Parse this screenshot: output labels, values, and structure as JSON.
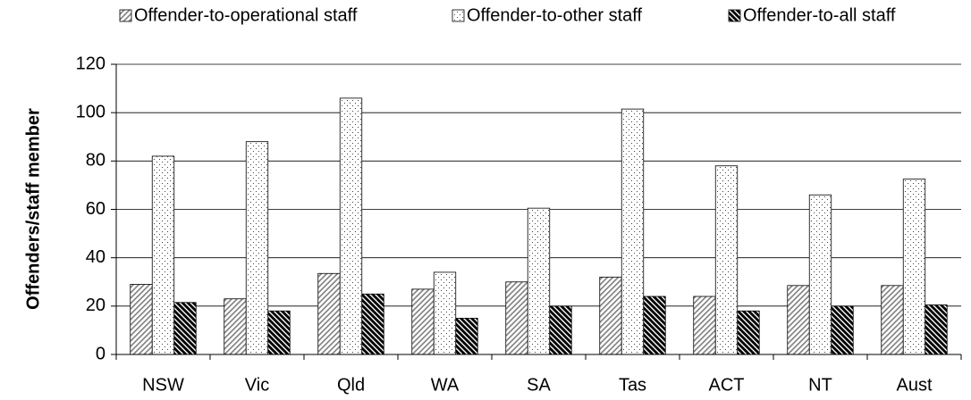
{
  "chart_data": {
    "type": "bar",
    "y_label": "Offenders/staff member",
    "categories": [
      "NSW",
      "Vic",
      "Qld",
      "WA",
      "SA",
      "Tas",
      "ACT",
      "NT",
      "Aust"
    ],
    "series": [
      {
        "name": "Offender-to-operational staff",
        "color": "#808080",
        "values": [
          29,
          23,
          33.5,
          27,
          30,
          32,
          24,
          28.5,
          28.5
        ]
      },
      {
        "name": "Offender-to-other staff",
        "color": "#404040",
        "values": [
          82,
          88,
          106,
          34,
          60.5,
          101.5,
          78,
          66,
          72.5
        ]
      },
      {
        "name": "Offender-to-all staff",
        "color": "#000000",
        "values": [
          21.5,
          18,
          25,
          15,
          20,
          24,
          18,
          20,
          20.5
        ]
      }
    ],
    "ylim": [
      0,
      120
    ],
    "yticks": [
      0,
      20,
      40,
      60,
      80,
      100,
      120
    ],
    "grid": true,
    "legend": "top"
  }
}
